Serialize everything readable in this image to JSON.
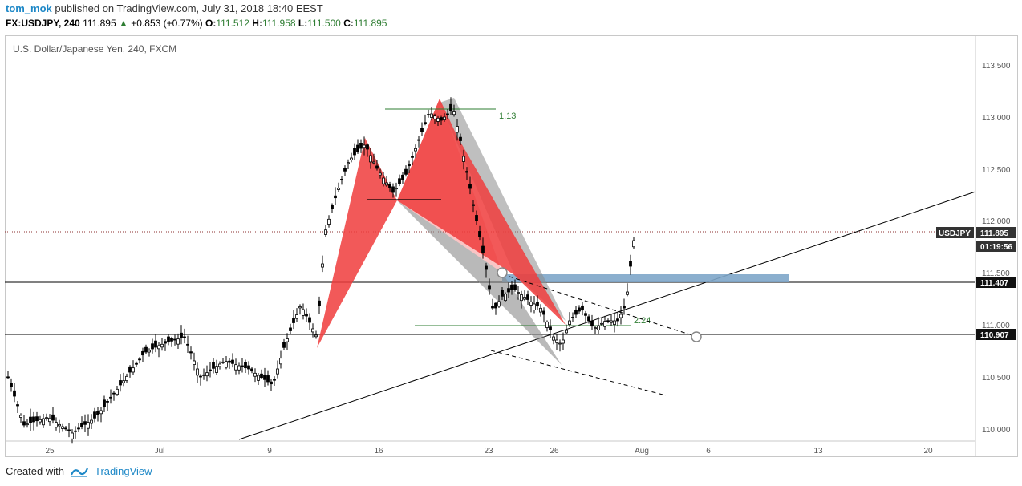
{
  "header": {
    "author": "tom_mok",
    "published_text": "published on TradingView.com, July 31, 2018 18:40 EEST"
  },
  "quote": {
    "symbol": "FX:USDJPY, 240",
    "last": "111.895",
    "change": "+0.853 (+0.77%)",
    "open_label": "O:",
    "open": "111.512",
    "high_label": "H:",
    "high": "111.958",
    "low_label": "L:",
    "low": "111.500",
    "close_label": "C:",
    "close": "111.895"
  },
  "chart": {
    "title": "U.S. Dollar/Japanese Yen, 240, FXCM",
    "y_ticks": [
      "113.500",
      "113.000",
      "112.500",
      "112.000",
      "111.500",
      "111.000",
      "110.500",
      "110.000"
    ],
    "x_ticks": [
      "25",
      "Jul",
      "9",
      "16",
      "23",
      "26",
      "Aug",
      "6",
      "13",
      "20"
    ],
    "price_tag": {
      "symbol": "USDJPY",
      "price": "111.895",
      "countdown": "01:19:56"
    },
    "levels": [
      "111.407",
      "110.907"
    ],
    "fib_labels": [
      "1.13",
      "2.24"
    ],
    "colors": {
      "pattern_red": "#f03c3c",
      "pattern_gray": "#a0a0a0",
      "zone_blue": "#7ea6c9",
      "fib_green": "#2e7d32",
      "level_tag": "#111111",
      "price_tag": "#333333"
    }
  },
  "footer": {
    "created_with": "Created with",
    "brand": "TradingView"
  }
}
